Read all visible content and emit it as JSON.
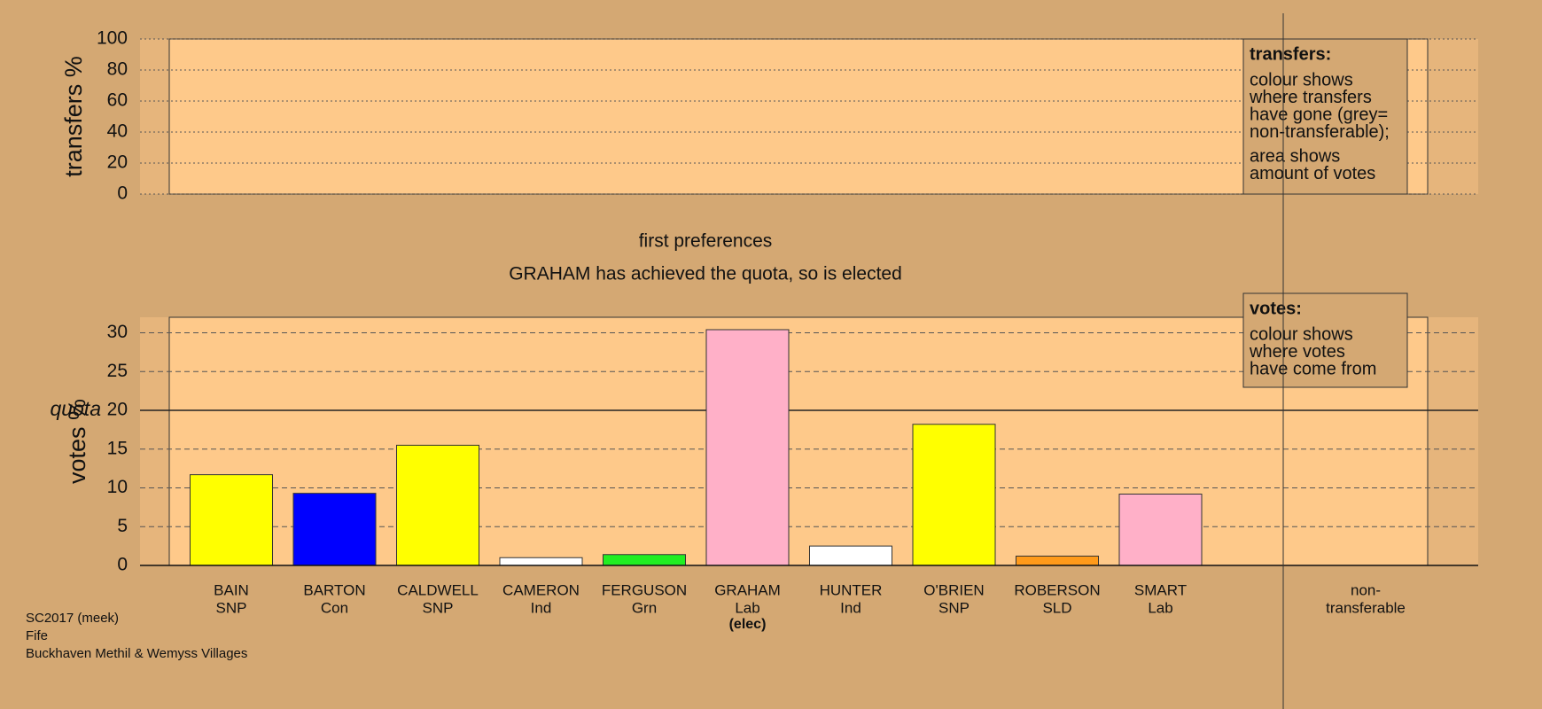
{
  "chart_data": [
    {
      "type": "empty",
      "ylabel": "transfers %",
      "ylim": [
        0,
        100
      ],
      "yticks": [
        0,
        20,
        40,
        60,
        80,
        100
      ],
      "legend": {
        "title": "transfers:",
        "lines": [
          "colour shows",
          "where transfers",
          "have gone (grey=",
          "non-transferable);"
        ],
        "lines2": [
          "area shows",
          "amount of votes"
        ]
      }
    },
    {
      "type": "bar",
      "title": "first preferences",
      "subtitle": "GRAHAM has achieved the quota, so is elected",
      "ylabel": "votes %",
      "ylim": [
        0,
        32
      ],
      "yticks": [
        0,
        5,
        10,
        15,
        20,
        25,
        30
      ],
      "quota": 20,
      "quota_label": "quota",
      "categories": [
        "BAIN",
        "BARTON",
        "CALDWELL",
        "CAMERON",
        "FERGUSON",
        "GRAHAM",
        "HUNTER",
        "O'BRIEN",
        "ROBERSON",
        "SMART",
        "non-"
      ],
      "parties": [
        "SNP",
        "Con",
        "SNP",
        "Ind",
        "Grn",
        "Lab",
        "Ind",
        "SNP",
        "SLD",
        "Lab",
        "transferable"
      ],
      "notes": [
        null,
        null,
        null,
        null,
        null,
        "(elec)",
        null,
        null,
        null,
        null,
        null
      ],
      "values": [
        11.7,
        9.3,
        15.5,
        1.0,
        1.4,
        30.4,
        2.5,
        18.2,
        1.2,
        9.2,
        null
      ],
      "colors": [
        "#ffff00",
        "#0000ff",
        "#ffff00",
        "#ffffff",
        "#22ee22",
        "#ffb0c8",
        "#ffffff",
        "#ffff00",
        "#ff9a1a",
        "#ffb0c8",
        null
      ],
      "legend": {
        "title": "votes:",
        "lines": [
          "colour shows",
          "where votes",
          "have come from"
        ]
      }
    }
  ],
  "footer": [
    "SC2017 (meek)",
    "Fife",
    "Buckhaven Methil & Wemyss Villages"
  ]
}
